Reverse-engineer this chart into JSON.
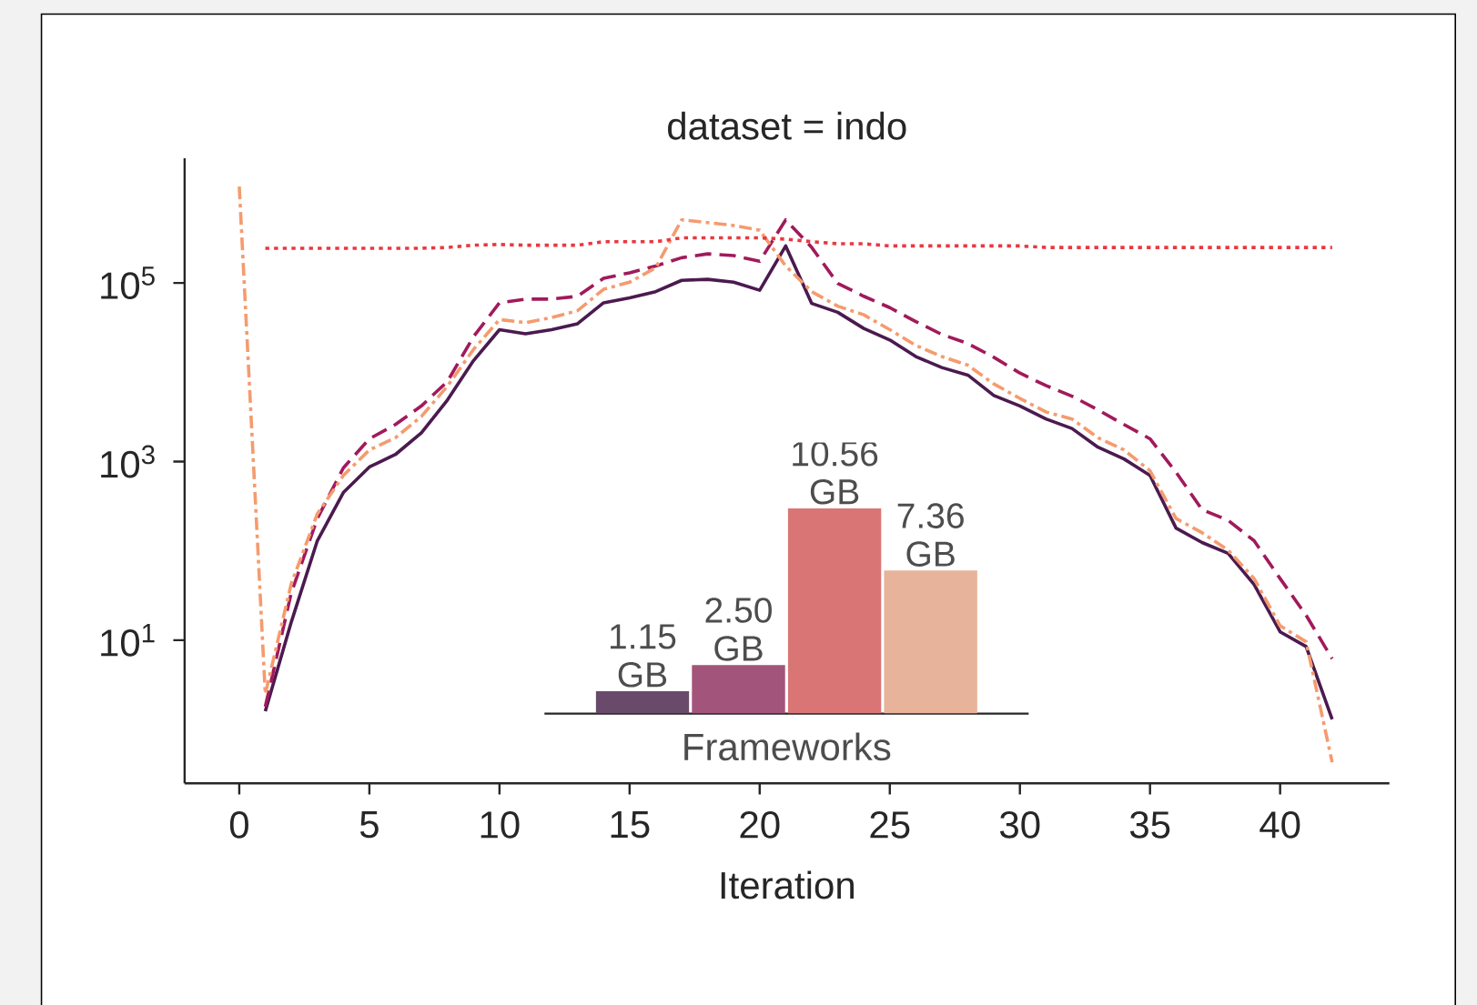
{
  "chart_data": [
    {
      "type": "line",
      "title": "dataset = indo",
      "xlabel": "Iteration",
      "log": "y",
      "xlim": [
        -2.1,
        44.2
      ],
      "xticks": [
        0,
        5,
        10,
        15,
        20,
        25,
        30,
        35,
        40
      ],
      "ylim": [
        0.25,
        2500000
      ],
      "yticks": [
        {
          "value": 10,
          "label": "10$^{1}$"
        },
        {
          "value": 1000,
          "label": "10$^{3}$"
        },
        {
          "value": 100000,
          "label": "10$^{5}$"
        }
      ],
      "x": [
        1,
        2,
        3,
        4,
        5,
        6,
        7,
        8,
        9,
        10,
        11,
        12,
        13,
        14,
        15,
        16,
        17,
        18,
        19,
        20,
        21,
        22,
        23,
        24,
        25,
        26,
        27,
        28,
        29,
        30,
        31,
        32,
        33,
        34,
        35,
        36,
        37,
        38,
        39,
        40,
        41,
        42
      ],
      "series": [
        {
          "color": "#4b1a4f",
          "line_style": "solid",
          "values": [
            1.6,
            16,
            130,
            450,
            870,
            1200,
            2100,
            4900,
            13500,
            30000,
            27000,
            30000,
            35000,
            60000,
            68000,
            80000,
            107000,
            110000,
            102000,
            83000,
            260000,
            59000,
            47000,
            31000,
            23000,
            15000,
            11300,
            9300,
            5500,
            4200,
            3000,
            2350,
            1450,
            1070,
            700,
            180,
            124,
            94,
            42,
            12.4,
            8.5,
            1.3
          ]
        },
        {
          "color": "#a11a5b",
          "line_style": "dashed",
          "values": [
            1.8,
            34,
            230,
            850,
            1800,
            2600,
            4200,
            7900,
            25000,
            60000,
            66000,
            66000,
            71000,
            113000,
            130000,
            155000,
            192000,
            212000,
            203000,
            175000,
            510000,
            250000,
            99000,
            71000,
            53000,
            37000,
            26500,
            21000,
            14700,
            9800,
            7100,
            5400,
            3800,
            2600,
            1800,
            760,
            290,
            220,
            130,
            49,
            19,
            6.2
          ]
        },
        {
          "color": "#f59b6e",
          "line_style": "dashdot",
          "x": [
            0,
            1,
            2,
            3,
            4,
            5,
            6,
            7,
            8,
            9,
            10,
            11,
            12,
            13,
            14,
            15,
            16,
            17,
            18,
            19,
            20,
            21,
            22,
            23,
            24,
            25,
            26,
            27,
            28,
            29,
            30,
            31,
            32,
            33,
            34,
            35,
            36,
            37,
            38,
            39,
            40,
            41,
            42
          ],
          "values": [
            1200000,
            2.5,
            43,
            260,
            700,
            1350,
            1850,
            3200,
            7000,
            18000,
            39000,
            36000,
            41000,
            49000,
            85000,
            102000,
            148000,
            510000,
            475000,
            440000,
            390000,
            155000,
            80000,
            55000,
            44000,
            30000,
            20000,
            15000,
            12000,
            7400,
            5100,
            3600,
            3000,
            1850,
            1350,
            790,
            230,
            160,
            102,
            49,
            14.5,
            9.6,
            0.43
          ]
        },
        {
          "color": "#e9383f",
          "line_style": "dotted",
          "values": [
            245000,
            245000,
            245000,
            245000,
            245000,
            245000,
            245000,
            250000,
            265000,
            270000,
            265000,
            265000,
            265000,
            290000,
            290000,
            290000,
            320000,
            320000,
            320000,
            320000,
            310000,
            290000,
            275000,
            275000,
            260000,
            260000,
            260000,
            260000,
            260000,
            260000,
            250000,
            250000,
            250000,
            250000,
            250000,
            250000,
            250000,
            250000,
            250000,
            250000,
            250000,
            250000
          ]
        }
      ]
    },
    {
      "type": "bar",
      "xlabel": "Frameworks",
      "categories": [
        null,
        null,
        null,
        null
      ],
      "values": [
        1.15,
        2.5,
        10.56,
        7.36
      ],
      "colors": [
        "#6a4a6b",
        "#a3547a",
        "#d97575",
        "#e8b39b"
      ],
      "value_labels": [
        "1.15 GB",
        "2.50 GB",
        "10.56 GB",
        "7.36 GB"
      ],
      "tick_labels": false
    }
  ]
}
